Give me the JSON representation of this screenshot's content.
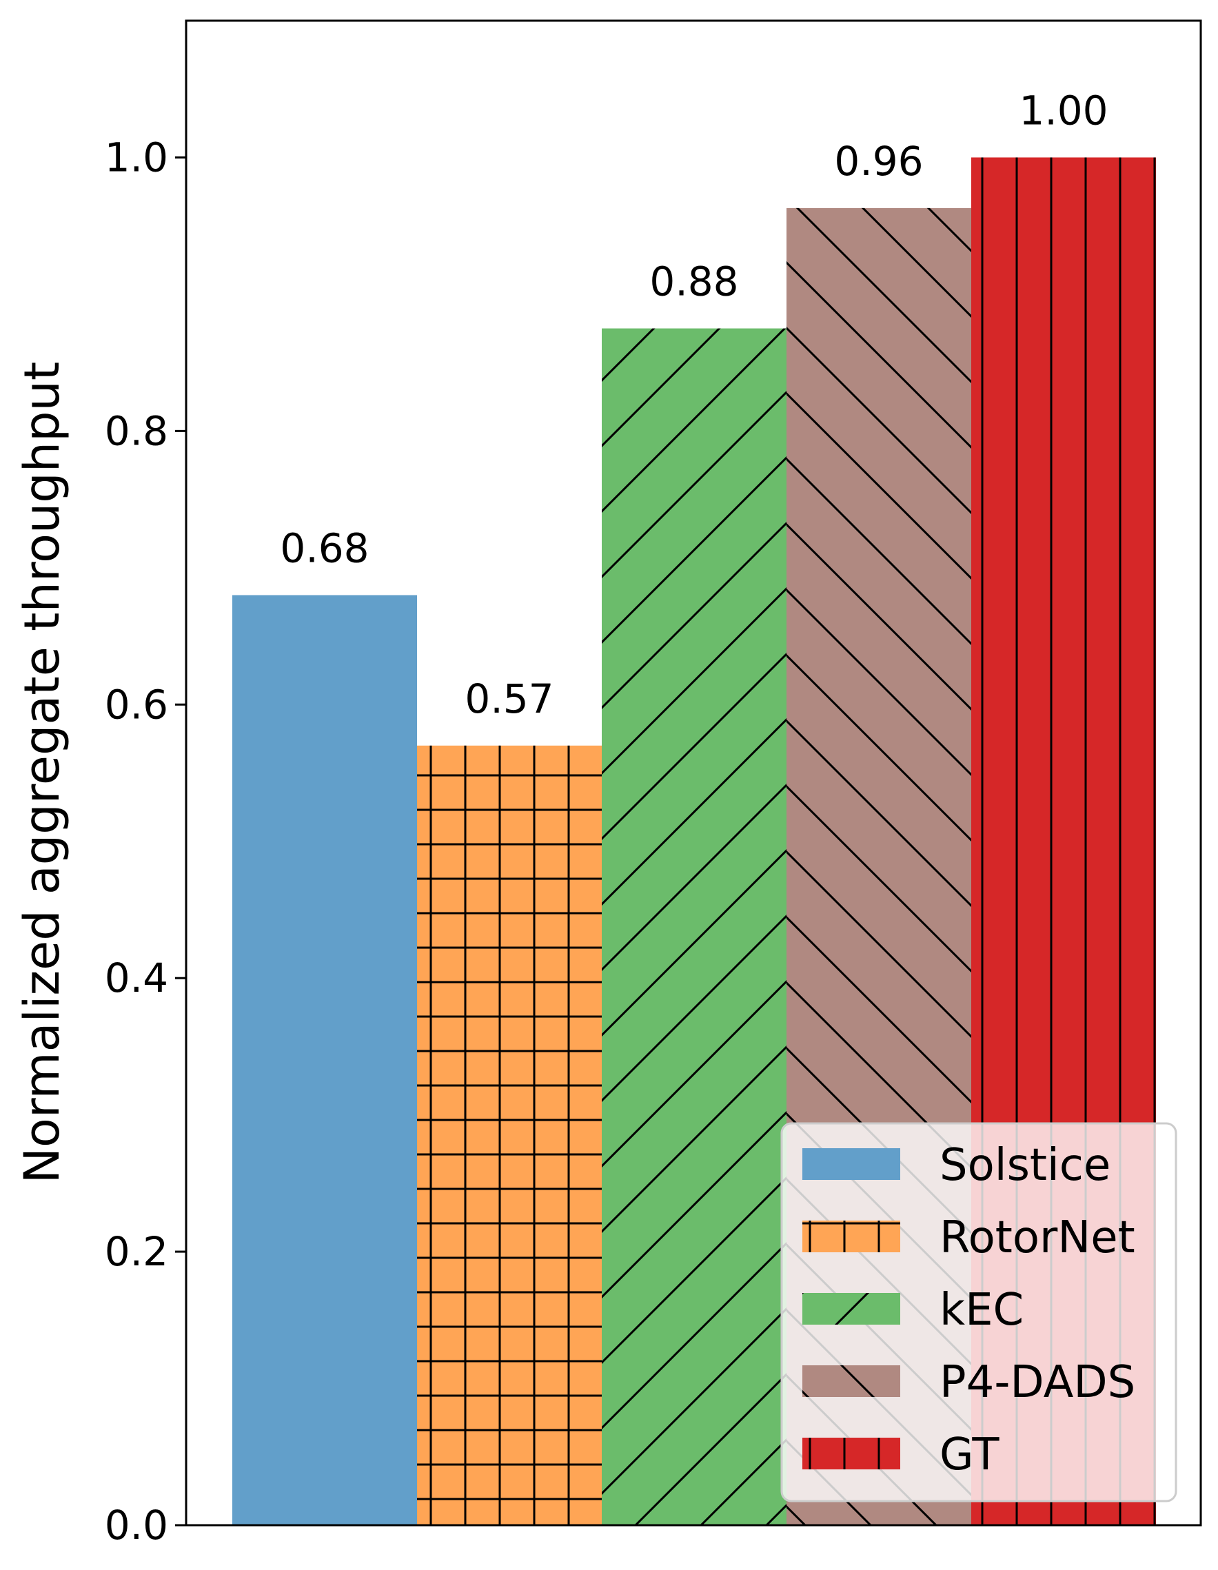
{
  "chart_data": {
    "type": "bar",
    "title": "",
    "xlabel": "",
    "ylabel": "Normalized aggregate throughput",
    "ylim": [
      0,
      1.1
    ],
    "yticks": [
      0.0,
      0.2,
      0.4,
      0.6,
      0.8,
      1.0
    ],
    "ytick_labels": [
      "0.0",
      "0.2",
      "0.4",
      "0.6",
      "0.8",
      "1.0"
    ],
    "grid": false,
    "legend_position": "lower-right",
    "series": [
      {
        "name": "Solstice",
        "value": 0.68,
        "label": "0.68",
        "color": "#629fca",
        "hatch": "none"
      },
      {
        "name": "RotorNet",
        "value": 0.57,
        "label": "0.57",
        "color": "#ffa555",
        "hatch": "grid"
      },
      {
        "name": "kEC",
        "value": 0.875,
        "label": "0.88",
        "color": "#6bbc6b",
        "hatch": "forward-diagonal"
      },
      {
        "name": "P4-DADS",
        "value": 0.963,
        "label": "0.96",
        "color": "#b08981",
        "hatch": "back-diagonal"
      },
      {
        "name": "GT",
        "value": 1.0,
        "label": "1.00",
        "color": "#d62728",
        "hatch": "vertical"
      }
    ]
  }
}
